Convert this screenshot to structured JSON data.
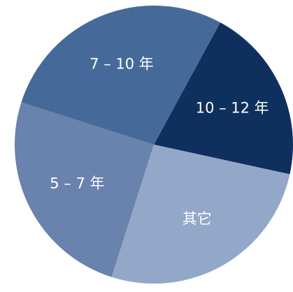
{
  "chart_data": {
    "type": "pie",
    "title": "",
    "slices": [
      {
        "label": "10 – 12 年",
        "value": 20.5,
        "color": "#0F2F5E"
      },
      {
        "label": "其它",
        "value": 26.5,
        "color": "#93A7C8"
      },
      {
        "label": "5 – 7 年",
        "value": 25.0,
        "color": "#6982AE"
      },
      {
        "label": "7 – 10 年",
        "value": 28.0,
        "color": "#456A99"
      }
    ],
    "start_angle_deg": -61.5,
    "direction": "clockwise",
    "legend": "none",
    "data_labels": "inside"
  }
}
